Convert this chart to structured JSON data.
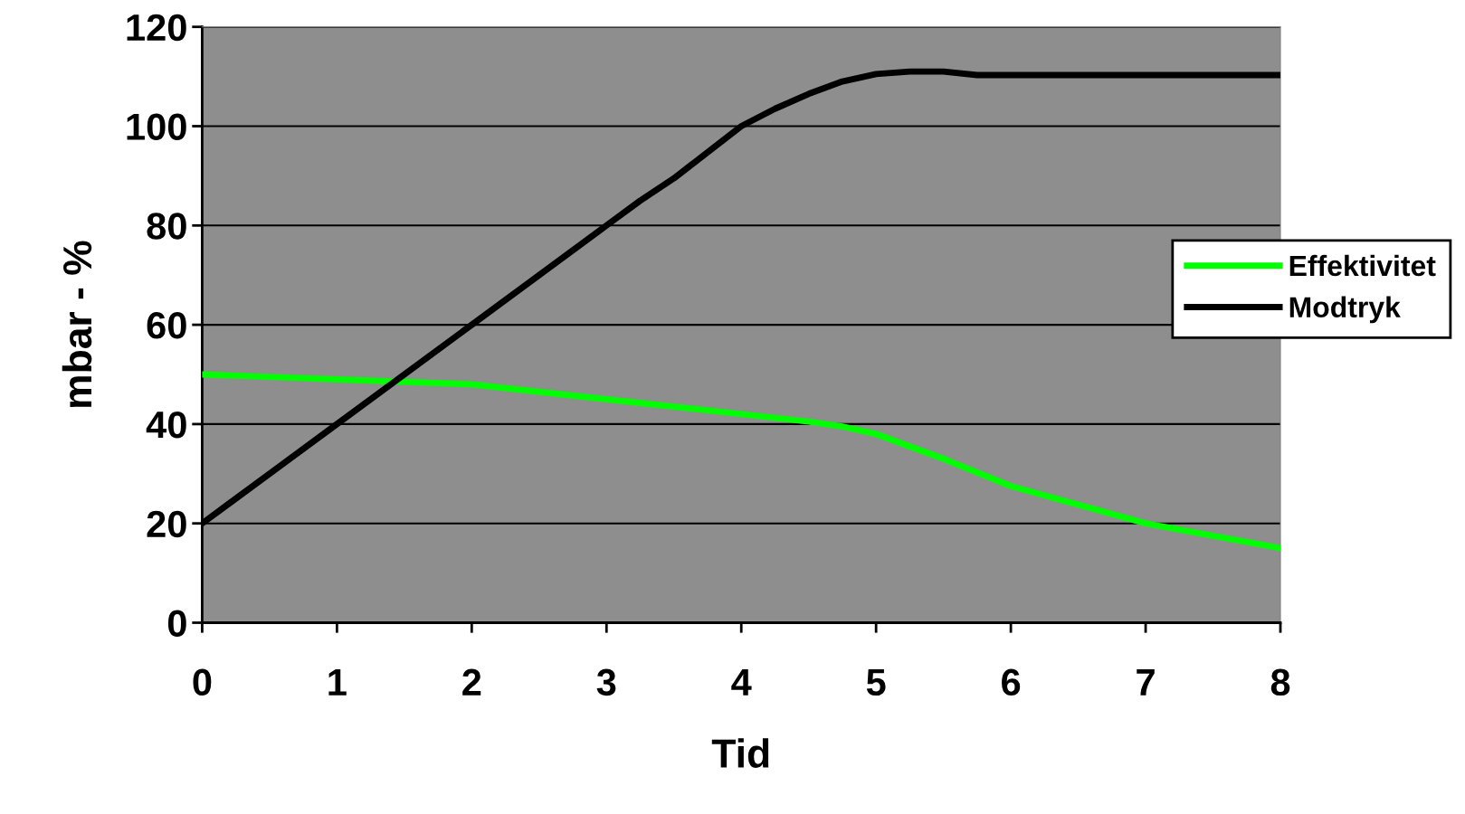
{
  "chart_data": {
    "type": "line",
    "xlabel": "Tid",
    "ylabel": "mbar - %",
    "xlim": [
      0,
      8
    ],
    "xticks": [
      0,
      1,
      2,
      3,
      4,
      5,
      6,
      7,
      8
    ],
    "ylim": [
      0,
      120
    ],
    "yticks": [
      0,
      20,
      40,
      60,
      80,
      100,
      120
    ],
    "grid": "y",
    "legend": "right",
    "marker": "none",
    "line_style": "solid",
    "series": [
      {
        "name": "Effektivitet",
        "color": "#00ff00",
        "x": [
          0,
          1,
          2,
          3,
          4,
          4.5,
          4.75,
          5,
          5.5,
          6,
          7,
          8
        ],
        "values": [
          50,
          49,
          48,
          45,
          42,
          40.5,
          39.5,
          38,
          33,
          27.5,
          20,
          15
        ]
      },
      {
        "name": "Modtryk",
        "color": "#000000",
        "x": [
          0,
          1,
          2,
          3,
          3.25,
          3.5,
          4,
          4.25,
          4.5,
          4.75,
          5,
          5.25,
          5.5,
          5.75,
          6,
          7,
          8
        ],
        "values": [
          20,
          40,
          60,
          80,
          85,
          89.5,
          100,
          103.5,
          106.5,
          109,
          110.5,
          111,
          111,
          110.3,
          110.3,
          110.3,
          110.3
        ]
      }
    ]
  }
}
